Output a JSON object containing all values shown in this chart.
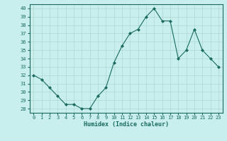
{
  "x": [
    0,
    1,
    2,
    3,
    4,
    5,
    6,
    7,
    8,
    9,
    10,
    11,
    12,
    13,
    14,
    15,
    16,
    17,
    18,
    19,
    20,
    21,
    22,
    23
  ],
  "y": [
    32,
    31.5,
    30.5,
    29.5,
    28.5,
    28.5,
    28,
    28,
    29.5,
    30.5,
    33.5,
    35.5,
    37,
    37.5,
    39,
    40,
    38.5,
    38.5,
    34,
    35,
    37.5,
    35,
    34,
    33
  ],
  "line_color": "#1a6b5e",
  "marker": "D",
  "marker_size": 2.0,
  "bg_color": "#c8eeee",
  "grid_color": "#aed8d0",
  "xlabel": "Humidex (Indice chaleur)",
  "xlim": [
    -0.5,
    23.5
  ],
  "ylim": [
    27.5,
    40.5
  ],
  "xtick_labels": [
    "0",
    "1",
    "2",
    "3",
    "4",
    "5",
    "6",
    "7",
    "8",
    "9",
    "10",
    "11",
    "12",
    "13",
    "14",
    "15",
    "16",
    "17",
    "18",
    "19",
    "20",
    "21",
    "22",
    "23"
  ],
  "yticks": [
    28,
    29,
    30,
    31,
    32,
    33,
    34,
    35,
    36,
    37,
    38,
    39,
    40
  ],
  "xlabel_fontsize": 6.0,
  "tick_fontsize": 5.0,
  "linewidth": 0.8
}
